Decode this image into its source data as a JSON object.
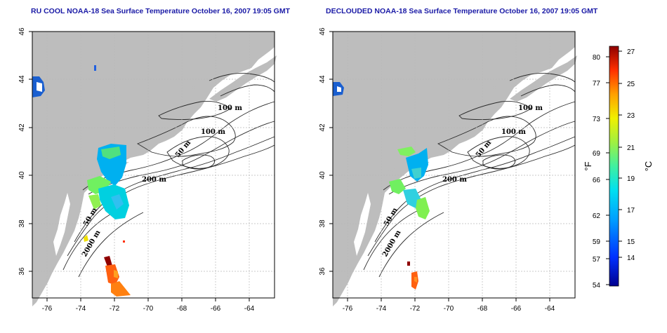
{
  "titles": {
    "left": "RU COOL NOAA-18 Sea Surface Temperature October 16, 2007 19:05 GMT",
    "right": "DECLOUDED NOAA-18 Sea Surface Temperature October 16, 2007 19:05 GMT"
  },
  "axes": {
    "lon_ticks": [
      "-76",
      "-74",
      "-72",
      "-70",
      "-68",
      "-66",
      "-64"
    ],
    "lat_ticks": [
      "46",
      "44",
      "42",
      "40",
      "38",
      "36"
    ]
  },
  "contour_labels": [
    "100 m",
    "100 m",
    "50 m",
    "200 m",
    "50 m",
    "2000 m"
  ],
  "colorbar": {
    "fahrenheit_ticks": [
      "80",
      "77",
      "73",
      "69",
      "66",
      "62",
      "59",
      "57",
      "54"
    ],
    "celsius_ticks": [
      "27",
      "25",
      "23",
      "21",
      "19",
      "17",
      "15",
      "14"
    ],
    "fahrenheit_unit": "°F",
    "celsius_unit": "°C"
  },
  "colors": {
    "land": "#bdbdbd",
    "ocean": "#ffffff",
    "title": "#1a1aa6",
    "grid": "#b8b8b8"
  }
}
